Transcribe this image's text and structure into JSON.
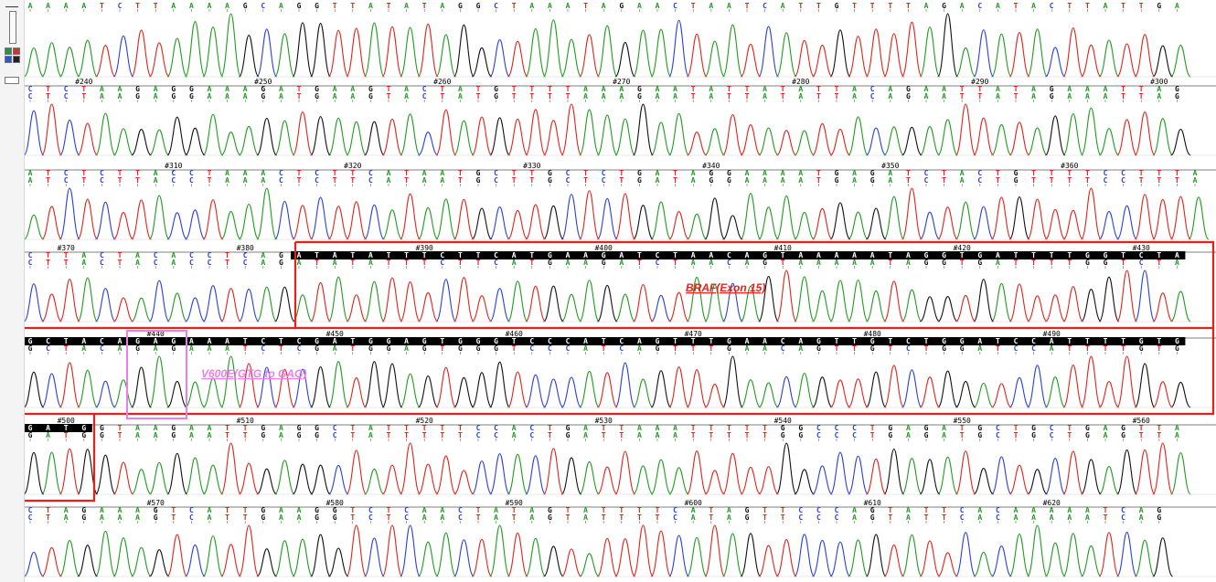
{
  "colors": {
    "A": "#1f9c1f",
    "C": "#2a3fdc",
    "G": "#111111",
    "T": "#e2231a",
    "annotation_exon": "#e8201a",
    "annotation_mutation": "#ea7fe8",
    "highlight": "#000000"
  },
  "toolbar": {
    "icons": [
      "horizontal-ruler-icon",
      "vertical-ruler-icon",
      "base-color-icon-a",
      "base-color-icon-g",
      "base-color-icon-c",
      "base-color-icon-t",
      "trace-toggle-icon"
    ]
  },
  "rows": [
    {
      "calls": "AAAATCTTAAAAGCAGGTTATATAGGCTAAATAGAACTAATCATTGTTTTAGACATACTTATTGA",
      "upper": "",
      "ticks": []
    },
    {
      "calls": "CTCTAAGAGGAAAGATGAAGTACTATGTTTTAAAGAATATTATATTACAGAATTATAGAAATTAG",
      "upper": "CTCTAAGAGGAAAGATGAAGTACTATGTTTTAAAGAATATTATATTACAGAATTATAGAAATTAG",
      "ticks": [
        {
          "n": "#240",
          "i": 3
        },
        {
          "n": "#250",
          "i": 13
        },
        {
          "n": "#260",
          "i": 23
        },
        {
          "n": "#270",
          "i": 33
        },
        {
          "n": "#280",
          "i": 43
        },
        {
          "n": "#290",
          "i": 53
        },
        {
          "n": "#300",
          "i": 63
        }
      ]
    },
    {
      "calls": "ATCTCTTACCTAAACTCTTCATAATGCTTGCTCTGATAGGAAAATGAGATCTACTGTTTTCCTTTA",
      "upper": "ATCTCTTACCTAAACTCTTCATAATGCTTGCTCTGATAGGAAAATGAGATCTACTGTTTTCCTTTA",
      "ticks": [
        {
          "n": "#310",
          "i": 8
        },
        {
          "n": "#320",
          "i": 18
        },
        {
          "n": "#330",
          "i": 28
        },
        {
          "n": "#340",
          "i": 38
        },
        {
          "n": "#350",
          "i": 48
        },
        {
          "n": "#360",
          "i": 58
        }
      ]
    },
    {
      "calls": "CTTACTACACCTCAGATATATTTCTTCATGAAGATCTAACAGTAAAAATAGGTGATTTTGGTCTA",
      "upper": "CTTACTACACCTCAGATATATTTCTTCATGAAGATCTAACAGTAAAAATAGGTGATTTTGGTCTA",
      "ticks": [
        {
          "n": "#370",
          "i": 2
        },
        {
          "n": "#380",
          "i": 12
        },
        {
          "n": "#390",
          "i": 22
        },
        {
          "n": "#400",
          "i": 32
        },
        {
          "n": "#410",
          "i": 42
        },
        {
          "n": "#420",
          "i": 52
        },
        {
          "n": "#430",
          "i": 62
        }
      ],
      "hl": [
        15,
        64
      ]
    },
    {
      "calls": "GCTACAGAGAAATCTCGATGGAGTGGGTCCCATCAGTTTGAACAGTTGTCTGGATCCATTTTGTG",
      "upper": "GCTACAGAGAAATCTCGATGGAGTGGGTCCCATCAGTTTGAACAGTTGTCTGGATCCATTTTGTG",
      "ticks": [
        {
          "n": "#440",
          "i": 7
        },
        {
          "n": "#450",
          "i": 17
        },
        {
          "n": "#460",
          "i": 27
        },
        {
          "n": "#470",
          "i": 37
        },
        {
          "n": "#480",
          "i": 47
        },
        {
          "n": "#490",
          "i": 57
        }
      ],
      "hl": [
        0,
        64
      ]
    },
    {
      "calls": "GATGGTAAGAATTGAGGCTATTTTTCCACTGATTAAATTTTTGGCCCTGAGATGCTGCTGAGTTA",
      "upper": "GATGGTAAGAATTGAGGCTATTTTTCCACTGATTAAATTTTTGGCCCTGAGATGCTGCTGAGTTA",
      "ticks": [
        {
          "n": "#500",
          "i": 2
        },
        {
          "n": "#510",
          "i": 12
        },
        {
          "n": "#520",
          "i": 22
        },
        {
          "n": "#530",
          "i": 32
        },
        {
          "n": "#540",
          "i": 42
        },
        {
          "n": "#550",
          "i": 52
        },
        {
          "n": "#560",
          "i": 62
        }
      ],
      "hl": [
        0,
        3
      ]
    },
    {
      "calls": "CTAGAAAGTCATTGAAGGTCTCAACTATAGTATTTTCATAGTTCCCAGTATTCACAAAAATCAG",
      "upper": "CTAGAAAGTCATTGAAGGTCTCAACTATAGTATTTTCATAGTTCCCAGTATTCACAAAAATCAG",
      "ticks": [
        {
          "n": "#570",
          "i": 7
        },
        {
          "n": "#580",
          "i": 17
        },
        {
          "n": "#590",
          "i": 27
        },
        {
          "n": "#600",
          "i": 37
        },
        {
          "n": "#610",
          "i": 47
        },
        {
          "n": "#620",
          "i": 57
        }
      ]
    }
  ],
  "annotations": {
    "exon_label": "BRAF(Exon 15)",
    "mutation_label": "V600E(GTG to GAG)"
  }
}
